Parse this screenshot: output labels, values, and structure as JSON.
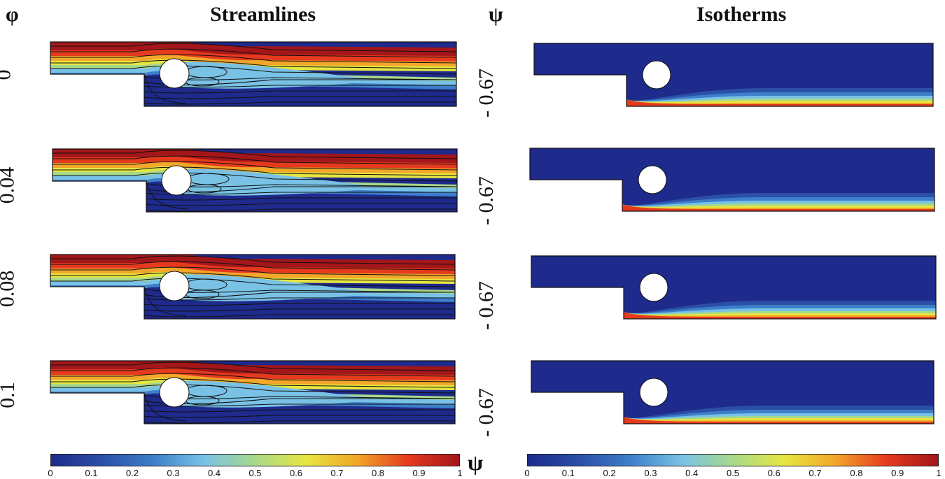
{
  "headers": {
    "phi_symbol": "φ",
    "streamlines_title": "Streamlines",
    "psi_symbol": "ψ",
    "isotherms_title": "Isotherms"
  },
  "rows": [
    {
      "phi": "0",
      "psi_value": "- 0.67"
    },
    {
      "phi": "0.04",
      "psi_value": "- 0.67"
    },
    {
      "phi": "0.08",
      "psi_value": "- 0.67"
    },
    {
      "phi": "0.1",
      "psi_value": "- 0.67"
    }
  ],
  "colorbars": {
    "left": {
      "ticks": [
        "0",
        "0.1",
        "0.2",
        "0.3",
        "0.4",
        "0.5",
        "0.6",
        "0.7",
        "0.8",
        "0.9",
        "1"
      ],
      "label": "ψ"
    },
    "right": {
      "ticks": [
        "0",
        "0.1",
        "0.2",
        "0.3",
        "0.4",
        "0.5",
        "0.6",
        "0.7",
        "0.8",
        "0.9",
        "1"
      ]
    }
  },
  "colors": {
    "jet_stops": [
      "#1e2a8c",
      "#2b4fa6",
      "#3d7fc9",
      "#79c2e6",
      "#a8d98a",
      "#e6e640",
      "#f2a62a",
      "#e53a1e",
      "#a3161a"
    ],
    "field_bg": "#1e2a8c"
  }
}
